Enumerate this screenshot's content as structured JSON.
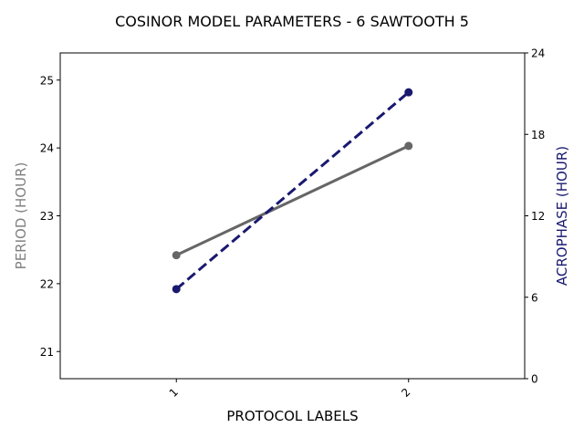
{
  "chart_data": {
    "type": "line",
    "title": "COSINOR MODEL PARAMETERS - 6 SAWTOOTH 5",
    "xlabel": "PROTOCOL LABELS",
    "ylabel_left": "PERIOD (HOUR)",
    "ylabel_right": "ACROPHASE (HOUR)",
    "categories": [
      "1",
      "2"
    ],
    "xlim": [
      0.5,
      2.5
    ],
    "ylim_left": [
      20.6,
      25.4
    ],
    "ylim_right": [
      0,
      24
    ],
    "yticks_left": [
      "21",
      "22",
      "23",
      "24",
      "25"
    ],
    "yticks_right": [
      "0",
      "6",
      "12",
      "18",
      "24"
    ],
    "grid": false,
    "series": [
      {
        "axis": "left",
        "values": [
          22.42,
          24.03
        ],
        "color": "#666666",
        "style": "solid"
      },
      {
        "axis": "right",
        "values": [
          6.6,
          21.1
        ],
        "color": "#191970",
        "style": "dashed"
      }
    ],
    "colors": {
      "left_label": "#808080",
      "right_label": "#191970"
    }
  }
}
